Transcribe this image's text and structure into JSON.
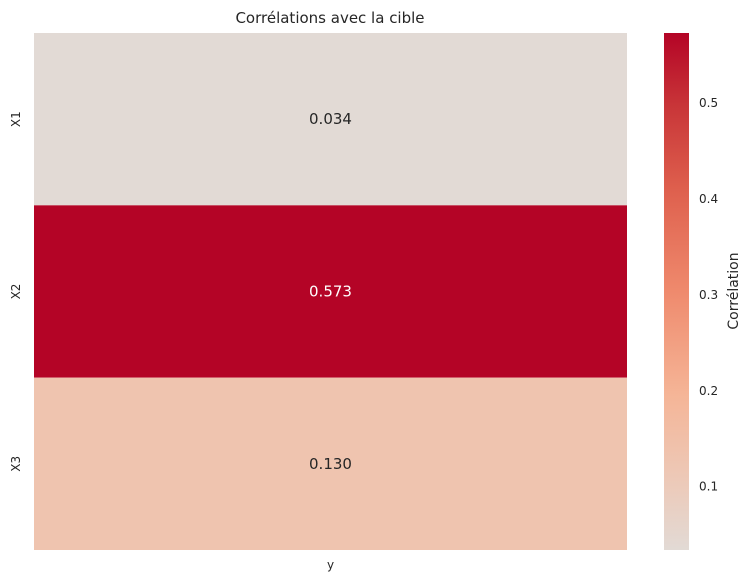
{
  "chart_data": {
    "type": "heatmap",
    "title": "Corrélations avec la cible",
    "rows": [
      "X1",
      "X2",
      "X3"
    ],
    "columns": [
      "y"
    ],
    "values": [
      [
        0.034
      ],
      [
        0.573
      ],
      [
        0.13
      ]
    ],
    "value_labels": [
      "0.034",
      "0.573",
      "0.130"
    ],
    "colormap": "coolwarm",
    "colorbar": {
      "label": "Corrélation",
      "range": [
        0.034,
        0.573
      ],
      "ticks": [
        0.1,
        0.2,
        0.3,
        0.4,
        0.5
      ],
      "tick_labels": [
        "0.1",
        "0.2",
        "0.3",
        "0.4",
        "0.5"
      ]
    },
    "grid": false
  },
  "colors": {
    "low": "#e2dad5",
    "high": "#b40426",
    "text_dark": "#262626",
    "text_light": "#ffffff"
  }
}
